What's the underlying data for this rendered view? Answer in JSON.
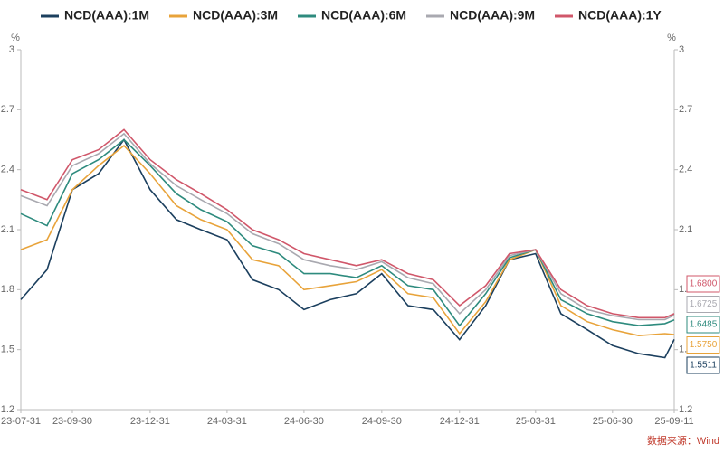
{
  "chart_data": {
    "type": "line",
    "y_unit": "%",
    "source": "数据来源：Wind",
    "x": [
      "23-07-31",
      "23-08-31",
      "23-09-30",
      "23-10-31",
      "23-11-30",
      "23-12-31",
      "24-01-31",
      "24-02-29",
      "24-03-31",
      "24-04-30",
      "24-05-31",
      "24-06-30",
      "24-07-31",
      "24-08-31",
      "24-09-30",
      "24-10-31",
      "24-11-30",
      "24-12-31",
      "25-01-31",
      "25-02-28",
      "25-03-31",
      "25-04-30",
      "25-05-31",
      "25-06-30",
      "25-07-31",
      "25-08-31",
      "25-09-11"
    ],
    "xlim": [
      "23-07-31",
      "25-09-11"
    ],
    "xticks": [
      "23-07-31",
      "23-09-30",
      "23-12-31",
      "24-03-31",
      "24-06-30",
      "24-09-30",
      "24-12-31",
      "25-03-31",
      "25-06-30",
      "25-09-11"
    ],
    "ylim": [
      1.2,
      3
    ],
    "yticks": [
      1.2,
      1.5,
      1.8,
      2.1,
      2.4,
      2.7,
      3
    ],
    "y2lim": [
      1.2,
      3
    ],
    "y2ticks": [
      1.2,
      1.5,
      1.8,
      2.1,
      2.4,
      2.7,
      3
    ],
    "series": [
      {
        "name": "NCD(AAA):1M",
        "color": "#1b3f5e",
        "end_label": "1.5511",
        "values": [
          1.75,
          1.9,
          2.3,
          2.38,
          2.55,
          2.3,
          2.15,
          2.1,
          2.05,
          1.85,
          1.8,
          1.7,
          1.75,
          1.78,
          1.88,
          1.72,
          1.7,
          1.55,
          1.72,
          1.95,
          1.98,
          1.68,
          1.6,
          1.52,
          1.48,
          1.46,
          1.5511
        ]
      },
      {
        "name": "NCD(AAA):3M",
        "color": "#e8a33a",
        "end_label": "1.5750",
        "values": [
          2.0,
          2.05,
          2.3,
          2.42,
          2.52,
          2.38,
          2.22,
          2.15,
          2.1,
          1.95,
          1.92,
          1.8,
          1.82,
          1.84,
          1.9,
          1.78,
          1.76,
          1.58,
          1.74,
          1.95,
          2.0,
          1.72,
          1.64,
          1.6,
          1.57,
          1.58,
          1.575
        ]
      },
      {
        "name": "NCD(AAA):6M",
        "color": "#2e8b7e",
        "end_label": "1.6485",
        "values": [
          2.18,
          2.12,
          2.38,
          2.45,
          2.55,
          2.42,
          2.28,
          2.2,
          2.14,
          2.02,
          1.98,
          1.88,
          1.88,
          1.86,
          1.92,
          1.82,
          1.8,
          1.62,
          1.78,
          1.96,
          2.0,
          1.75,
          1.68,
          1.64,
          1.62,
          1.63,
          1.6485
        ]
      },
      {
        "name": "NCD(AAA):9M",
        "color": "#a9a9b0",
        "end_label": "1.6725",
        "values": [
          2.27,
          2.22,
          2.42,
          2.48,
          2.58,
          2.43,
          2.32,
          2.25,
          2.18,
          2.08,
          2.03,
          1.95,
          1.92,
          1.9,
          1.94,
          1.86,
          1.83,
          1.68,
          1.8,
          1.97,
          2.0,
          1.78,
          1.7,
          1.67,
          1.65,
          1.65,
          1.6725
        ]
      },
      {
        "name": "NCD(AAA):1Y",
        "color": "#d0576a",
        "end_label": "1.6800",
        "values": [
          2.3,
          2.25,
          2.45,
          2.5,
          2.6,
          2.45,
          2.35,
          2.28,
          2.2,
          2.1,
          2.05,
          1.98,
          1.95,
          1.92,
          1.95,
          1.88,
          1.85,
          1.72,
          1.82,
          1.98,
          2.0,
          1.8,
          1.72,
          1.68,
          1.66,
          1.66,
          1.68
        ]
      }
    ]
  }
}
